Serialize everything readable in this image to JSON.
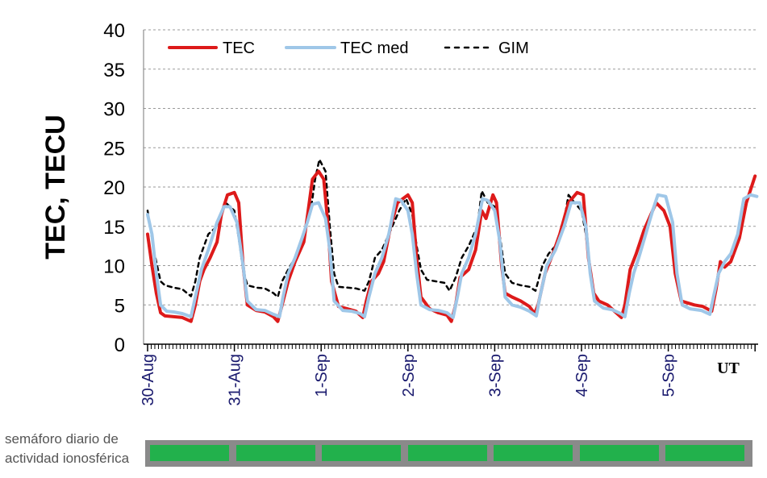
{
  "chart_data": {
    "type": "line",
    "ylabel": "TEC, TECU",
    "xlabel": "UT",
    "ylim": [
      0,
      40
    ],
    "yticks": [
      0,
      5,
      10,
      15,
      20,
      25,
      30,
      35,
      40
    ],
    "xlim": [
      0,
      7.05
    ],
    "x_tick_labels": [
      {
        "x": 0,
        "label": "30-Aug"
      },
      {
        "x": 1,
        "label": "31-Aug"
      },
      {
        "x": 2,
        "label": "1-Sep"
      },
      {
        "x": 3,
        "label": "2-Sep"
      },
      {
        "x": 4,
        "label": "3-Sep"
      },
      {
        "x": 5,
        "label": "4-Sep"
      },
      {
        "x": 6,
        "label": "5-Sep"
      }
    ],
    "grid": true,
    "legend_position": "top-left",
    "series": [
      {
        "name": "TEC",
        "color": "#dd1a1a",
        "dash": "solid",
        "points": [
          [
            0.0,
            14
          ],
          [
            0.05,
            10
          ],
          [
            0.1,
            6.5
          ],
          [
            0.15,
            4
          ],
          [
            0.2,
            3.6
          ],
          [
            0.3,
            3.5
          ],
          [
            0.4,
            3.4
          ],
          [
            0.5,
            2.9
          ],
          [
            0.55,
            5
          ],
          [
            0.6,
            8
          ],
          [
            0.65,
            9.5
          ],
          [
            0.72,
            11
          ],
          [
            0.8,
            13
          ],
          [
            0.85,
            16.5
          ],
          [
            0.92,
            19
          ],
          [
            1.0,
            19.3
          ],
          [
            1.05,
            18
          ],
          [
            1.1,
            10
          ],
          [
            1.15,
            5
          ],
          [
            1.25,
            4.3
          ],
          [
            1.35,
            4.1
          ],
          [
            1.45,
            3.5
          ],
          [
            1.5,
            2.9
          ],
          [
            1.55,
            5
          ],
          [
            1.62,
            8
          ],
          [
            1.7,
            10.5
          ],
          [
            1.8,
            13
          ],
          [
            1.85,
            17
          ],
          [
            1.9,
            21
          ],
          [
            1.97,
            22
          ],
          [
            2.03,
            21
          ],
          [
            2.08,
            15
          ],
          [
            2.12,
            8
          ],
          [
            2.2,
            4.8
          ],
          [
            2.3,
            4.5
          ],
          [
            2.4,
            4.2
          ],
          [
            2.48,
            3.4
          ],
          [
            2.52,
            5.5
          ],
          [
            2.58,
            8
          ],
          [
            2.66,
            9
          ],
          [
            2.72,
            10.5
          ],
          [
            2.8,
            15
          ],
          [
            2.88,
            18
          ],
          [
            3.0,
            19
          ],
          [
            3.05,
            18
          ],
          [
            3.1,
            11
          ],
          [
            3.15,
            6
          ],
          [
            3.25,
            4.5
          ],
          [
            3.35,
            4
          ],
          [
            3.45,
            3.7
          ],
          [
            3.5,
            2.9
          ],
          [
            3.55,
            5
          ],
          [
            3.6,
            8.5
          ],
          [
            3.7,
            9.5
          ],
          [
            3.78,
            12
          ],
          [
            3.85,
            17
          ],
          [
            3.9,
            16
          ],
          [
            3.98,
            19
          ],
          [
            4.02,
            18
          ],
          [
            4.08,
            10
          ],
          [
            4.12,
            6.5
          ],
          [
            4.2,
            6
          ],
          [
            4.3,
            5.5
          ],
          [
            4.4,
            4.8
          ],
          [
            4.46,
            3.9
          ],
          [
            4.5,
            5
          ],
          [
            4.58,
            9
          ],
          [
            4.67,
            11.5
          ],
          [
            4.75,
            14
          ],
          [
            4.85,
            18
          ],
          [
            4.95,
            19.3
          ],
          [
            5.02,
            19
          ],
          [
            5.08,
            11
          ],
          [
            5.14,
            6.5
          ],
          [
            5.2,
            5.5
          ],
          [
            5.3,
            5
          ],
          [
            5.4,
            4
          ],
          [
            5.46,
            3.4
          ],
          [
            5.5,
            5
          ],
          [
            5.56,
            9.5
          ],
          [
            5.63,
            11.5
          ],
          [
            5.72,
            14.5
          ],
          [
            5.8,
            16.5
          ],
          [
            5.86,
            18
          ],
          [
            5.95,
            17
          ],
          [
            6.02,
            15
          ],
          [
            6.08,
            9
          ],
          [
            6.15,
            5.5
          ],
          [
            6.3,
            5
          ],
          [
            6.4,
            4.8
          ],
          [
            6.5,
            4.2
          ],
          [
            6.55,
            7
          ],
          [
            6.6,
            10.5
          ],
          [
            6.65,
            9.8
          ],
          [
            6.72,
            10.5
          ],
          [
            6.82,
            13.5
          ],
          [
            6.9,
            18
          ],
          [
            7.0,
            21.4
          ]
        ]
      },
      {
        "name": "TEC med",
        "color": "#9fc7e8",
        "dash": "solid",
        "points": [
          [
            0.0,
            16.5
          ],
          [
            0.05,
            14
          ],
          [
            0.1,
            9
          ],
          [
            0.15,
            5
          ],
          [
            0.22,
            4.2
          ],
          [
            0.3,
            4.1
          ],
          [
            0.4,
            3.9
          ],
          [
            0.5,
            3.5
          ],
          [
            0.55,
            6
          ],
          [
            0.62,
            9.5
          ],
          [
            0.7,
            12
          ],
          [
            0.8,
            15.5
          ],
          [
            0.88,
            17.5
          ],
          [
            0.95,
            17.5
          ],
          [
            1.03,
            15.5
          ],
          [
            1.1,
            10
          ],
          [
            1.15,
            5.5
          ],
          [
            1.25,
            4.4
          ],
          [
            1.35,
            4.3
          ],
          [
            1.45,
            3.8
          ],
          [
            1.52,
            3.5
          ],
          [
            1.56,
            6
          ],
          [
            1.62,
            9
          ],
          [
            1.7,
            11
          ],
          [
            1.78,
            13.5
          ],
          [
            1.84,
            15.5
          ],
          [
            1.9,
            17.8
          ],
          [
            1.97,
            18
          ],
          [
            2.05,
            16
          ],
          [
            2.1,
            12
          ],
          [
            2.15,
            5.5
          ],
          [
            2.25,
            4.3
          ],
          [
            2.35,
            4.2
          ],
          [
            2.45,
            3.9
          ],
          [
            2.5,
            3.5
          ],
          [
            2.55,
            6
          ],
          [
            2.62,
            9
          ],
          [
            2.7,
            11
          ],
          [
            2.78,
            14
          ],
          [
            2.86,
            18.5
          ],
          [
            2.92,
            18.3
          ],
          [
            3.0,
            17
          ],
          [
            3.05,
            14
          ],
          [
            3.1,
            9
          ],
          [
            3.15,
            5
          ],
          [
            3.25,
            4.4
          ],
          [
            3.35,
            4.3
          ],
          [
            3.45,
            4
          ],
          [
            3.52,
            3.4
          ],
          [
            3.57,
            6
          ],
          [
            3.62,
            9
          ],
          [
            3.7,
            11
          ],
          [
            3.78,
            14
          ],
          [
            3.86,
            18.5
          ],
          [
            3.92,
            18.3
          ],
          [
            4.0,
            17
          ],
          [
            4.06,
            13
          ],
          [
            4.12,
            6
          ],
          [
            4.2,
            5
          ],
          [
            4.3,
            4.7
          ],
          [
            4.4,
            4.2
          ],
          [
            4.48,
            3.6
          ],
          [
            4.52,
            6
          ],
          [
            4.6,
            10
          ],
          [
            4.7,
            12
          ],
          [
            4.8,
            15
          ],
          [
            4.88,
            18
          ],
          [
            4.98,
            18
          ],
          [
            5.05,
            15
          ],
          [
            5.1,
            9
          ],
          [
            5.15,
            5.5
          ],
          [
            5.25,
            4.6
          ],
          [
            5.35,
            4.4
          ],
          [
            5.45,
            3.9
          ],
          [
            5.5,
            3.5
          ],
          [
            5.55,
            6.5
          ],
          [
            5.6,
            9
          ],
          [
            5.66,
            11
          ],
          [
            5.74,
            14
          ],
          [
            5.82,
            17
          ],
          [
            5.88,
            19
          ],
          [
            5.97,
            18.8
          ],
          [
            6.05,
            15.5
          ],
          [
            6.1,
            9
          ],
          [
            6.16,
            5
          ],
          [
            6.25,
            4.5
          ],
          [
            6.38,
            4.3
          ],
          [
            6.48,
            3.8
          ],
          [
            6.52,
            6
          ],
          [
            6.58,
            9
          ],
          [
            6.65,
            10.5
          ],
          [
            6.72,
            11.5
          ],
          [
            6.8,
            14
          ],
          [
            6.87,
            18.5
          ],
          [
            6.95,
            19
          ],
          [
            7.02,
            18.8
          ]
        ]
      },
      {
        "name": "GIM",
        "color": "#000000",
        "dash": "dashed",
        "points": [
          [
            0.0,
            17
          ],
          [
            0.08,
            11.5
          ],
          [
            0.15,
            8
          ],
          [
            0.2,
            7.5
          ],
          [
            0.3,
            7.2
          ],
          [
            0.4,
            7
          ],
          [
            0.5,
            6.1
          ],
          [
            0.55,
            8
          ],
          [
            0.6,
            11
          ],
          [
            0.7,
            14
          ],
          [
            0.8,
            15
          ],
          [
            0.9,
            18
          ],
          [
            1.0,
            17
          ],
          [
            1.05,
            13.5
          ],
          [
            1.1,
            9.5
          ],
          [
            1.15,
            7.5
          ],
          [
            1.25,
            7.2
          ],
          [
            1.35,
            7.1
          ],
          [
            1.45,
            6.5
          ],
          [
            1.5,
            6
          ],
          [
            1.55,
            8
          ],
          [
            1.62,
            9.5
          ],
          [
            1.7,
            11
          ],
          [
            1.8,
            14
          ],
          [
            1.88,
            17
          ],
          [
            1.93,
            21
          ],
          [
            1.98,
            23.5
          ],
          [
            2.05,
            22
          ],
          [
            2.1,
            15
          ],
          [
            2.15,
            9
          ],
          [
            2.2,
            7.3
          ],
          [
            2.3,
            7.2
          ],
          [
            2.4,
            7.1
          ],
          [
            2.5,
            6.8
          ],
          [
            2.55,
            8
          ],
          [
            2.62,
            11
          ],
          [
            2.7,
            12
          ],
          [
            2.8,
            14.5
          ],
          [
            2.9,
            17
          ],
          [
            2.98,
            18.5
          ],
          [
            3.05,
            16.5
          ],
          [
            3.1,
            12.5
          ],
          [
            3.15,
            9.5
          ],
          [
            3.22,
            8.2
          ],
          [
            3.32,
            8
          ],
          [
            3.42,
            7.8
          ],
          [
            3.48,
            6.8
          ],
          [
            3.55,
            8.5
          ],
          [
            3.62,
            11
          ],
          [
            3.7,
            12.5
          ],
          [
            3.8,
            15
          ],
          [
            3.85,
            19.5
          ],
          [
            3.92,
            18
          ],
          [
            4.0,
            17.5
          ],
          [
            4.07,
            13
          ],
          [
            4.12,
            9
          ],
          [
            4.2,
            7.8
          ],
          [
            4.3,
            7.5
          ],
          [
            4.4,
            7.3
          ],
          [
            4.47,
            6.8
          ],
          [
            4.55,
            10
          ],
          [
            4.62,
            11.5
          ],
          [
            4.7,
            12.5
          ],
          [
            4.78,
            14.5
          ],
          [
            4.85,
            19
          ],
          [
            4.92,
            18
          ],
          [
            5.0,
            17
          ],
          [
            5.05,
            14
          ],
          [
            5.1,
            9
          ]
        ]
      }
    ]
  },
  "semaforo": {
    "label_line1": "semáforo diario de",
    "label_line2": "actividad ionosférica",
    "days": [
      {
        "status_color": "#22b14c"
      },
      {
        "status_color": "#22b14c"
      },
      {
        "status_color": "#22b14c"
      },
      {
        "status_color": "#22b14c"
      },
      {
        "status_color": "#22b14c"
      },
      {
        "status_color": "#22b14c"
      },
      {
        "status_color": "#22b14c"
      }
    ]
  }
}
